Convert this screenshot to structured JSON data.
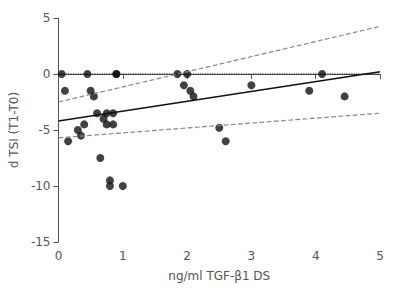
{
  "chart_data": {
    "type": "scatter",
    "x_label": "ng/ml TGF-β1 DS",
    "y_label": "d TSI (T1-T0)",
    "xlim": [
      0,
      5
    ],
    "ylim": [
      -15,
      5
    ],
    "xticks": [
      0,
      1,
      2,
      3,
      4,
      5
    ],
    "yticks": [
      5,
      0,
      -5,
      -10,
      -15
    ],
    "grid": false,
    "series": [
      {
        "type": "line",
        "line_style": "dotted",
        "color": "#111111",
        "x": [
          0,
          5
        ],
        "values": [
          0,
          0
        ]
      },
      {
        "type": "line",
        "line_style": "dashed",
        "color": "#888888",
        "x": [
          0,
          5
        ],
        "values": [
          -2.5,
          4.25
        ]
      },
      {
        "type": "line",
        "line_style": "dashed",
        "color": "#888888",
        "x": [
          0,
          5
        ],
        "values": [
          -5.7,
          -3.5
        ]
      },
      {
        "type": "line",
        "line_style": "solid",
        "color": "#111111",
        "x": [
          0,
          5
        ],
        "values": [
          -4.2,
          0.2
        ]
      },
      {
        "type": "scatter",
        "marker": "circle",
        "color": "#111111",
        "x": [
          0.05,
          0.1,
          0.15,
          0.3,
          0.35,
          0.4,
          0.45,
          0.5,
          0.55,
          0.6,
          0.65,
          0.7,
          0.75,
          0.75,
          0.8,
          0.8,
          0.85,
          0.85,
          0.9,
          0.9,
          1.0,
          1.85,
          1.95,
          2.0,
          2.05,
          2.1,
          2.5,
          2.6,
          3.0,
          3.9,
          4.1,
          4.45
        ],
        "values": [
          0.0,
          -1.5,
          -6.0,
          -5.0,
          -5.5,
          -4.5,
          0.0,
          -1.5,
          -2.0,
          -3.5,
          -7.5,
          -4.0,
          -4.5,
          -3.5,
          -9.5,
          -10.0,
          -3.5,
          -4.5,
          0.0,
          0.0,
          -10.0,
          0.0,
          -1.0,
          0.0,
          -1.5,
          -2.0,
          -4.8,
          -6.0,
          -1.0,
          -1.5,
          0.0,
          -2.0
        ]
      }
    ]
  }
}
